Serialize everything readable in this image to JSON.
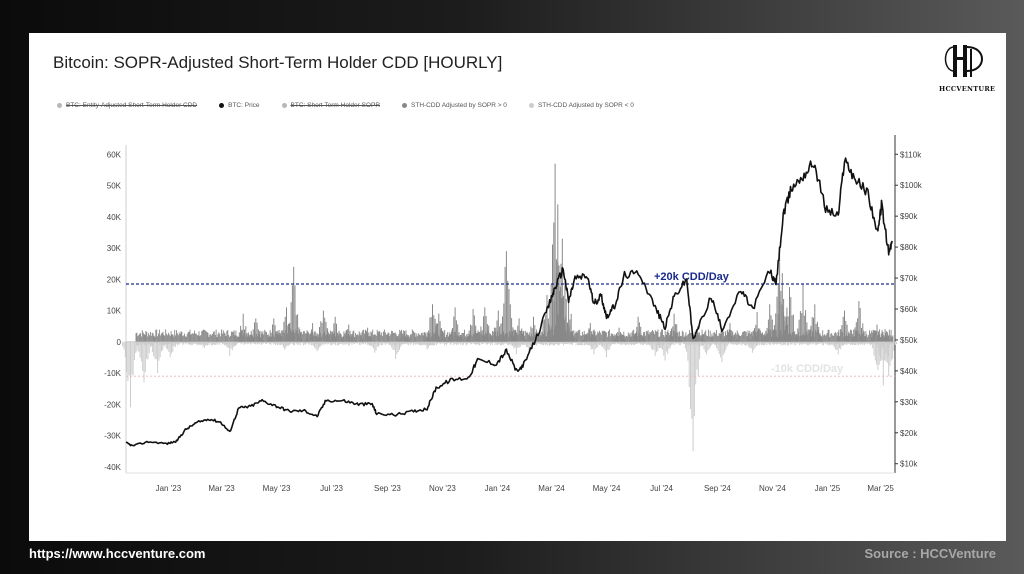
{
  "chart_data": {
    "type": "bar",
    "title": "Bitcoin: SOPR-Adjusted Short-Term Holder CDD [HOURLY]",
    "legend": [
      {
        "label": "BTC: Entity-Adjusted Short-Term Holder CDD",
        "color": "#b8b8b8",
        "hidden": true
      },
      {
        "label": "BTC: Price",
        "color": "#111111",
        "hidden": false
      },
      {
        "label": "BTC: Short Term Holder SOPR",
        "color": "#b8b8b8",
        "hidden": true
      },
      {
        "label": "STH-CDD Adjusted by SOPR > 0",
        "color": "#888888",
        "hidden": false
      },
      {
        "label": "STH-CDD Adjusted by SOPR < 0",
        "color": "#cccccc",
        "hidden": false
      }
    ],
    "legend_position": "top-left",
    "x_tick_labels": [
      "Jan '23",
      "Mar '23",
      "May '23",
      "Jul '23",
      "Sep '23",
      "Nov '23",
      "Jan '24",
      "Mar '24",
      "May '24",
      "Jul '24",
      "Sep '24",
      "Nov '24",
      "Jan '25",
      "Mar '25"
    ],
    "xlim": [
      "2022-11-15",
      "2025-03-17"
    ],
    "y_left": {
      "ticks": [
        "60K",
        "50K",
        "40K",
        "30K",
        "20K",
        "10K",
        "0",
        "-10K",
        "-20K",
        "-30K",
        "-40K"
      ],
      "ylim": [
        -42000,
        63000
      ]
    },
    "y_right": {
      "ticks": [
        "$110k",
        "$100k",
        "$90k",
        "$80k",
        "$70k",
        "$60k",
        "$50k",
        "$40k",
        "$30k",
        "$20k",
        "$10k"
      ],
      "ylim": [
        7000,
        113000
      ],
      "scale": "linear"
    },
    "grid": false,
    "annotations": [
      {
        "text": "+20k CDD/Day",
        "y": 18500,
        "color": "#1a2a8c",
        "style": "dashed"
      },
      {
        "text": "-10k CDD/Day",
        "y": -11000,
        "color": "#e8b4b4",
        "style": "dotted"
      }
    ],
    "series": [
      {
        "name": "BTC: Price",
        "axis": "right",
        "color": "#111111",
        "points": [
          [
            "2022-11-15",
            16800
          ],
          [
            "2022-11-22",
            15800
          ],
          [
            "2022-12-10",
            17100
          ],
          [
            "2022-12-31",
            16500
          ],
          [
            "2023-01-10",
            17300
          ],
          [
            "2023-01-20",
            21000
          ],
          [
            "2023-02-01",
            23200
          ],
          [
            "2023-02-15",
            24500
          ],
          [
            "2023-02-28",
            23400
          ],
          [
            "2023-03-10",
            20200
          ],
          [
            "2023-03-20",
            28000
          ],
          [
            "2023-04-01",
            28400
          ],
          [
            "2023-04-15",
            30400
          ],
          [
            "2023-05-01",
            28600
          ],
          [
            "2023-05-15",
            27000
          ],
          [
            "2023-06-01",
            27100
          ],
          [
            "2023-06-15",
            25300
          ],
          [
            "2023-06-25",
            30500
          ],
          [
            "2023-07-15",
            30300
          ],
          [
            "2023-07-31",
            29200
          ],
          [
            "2023-08-15",
            29300
          ],
          [
            "2023-08-20",
            26100
          ],
          [
            "2023-09-10",
            25800
          ],
          [
            "2023-09-30",
            27000
          ],
          [
            "2023-10-15",
            27800
          ],
          [
            "2023-10-25",
            34500
          ],
          [
            "2023-11-10",
            37000
          ],
          [
            "2023-11-30",
            37800
          ],
          [
            "2023-12-10",
            43500
          ],
          [
            "2023-12-31",
            42300
          ],
          [
            "2024-01-11",
            46500
          ],
          [
            "2024-01-23",
            39500
          ],
          [
            "2024-02-01",
            43000
          ],
          [
            "2024-02-15",
            52000
          ],
          [
            "2024-02-28",
            62000
          ],
          [
            "2024-03-05",
            67000
          ],
          [
            "2024-03-14",
            73000
          ],
          [
            "2024-03-20",
            62500
          ],
          [
            "2024-03-27",
            70000
          ],
          [
            "2024-04-10",
            70500
          ],
          [
            "2024-04-17",
            61500
          ],
          [
            "2024-04-25",
            64500
          ],
          [
            "2024-05-01",
            57500
          ],
          [
            "2024-05-10",
            61000
          ],
          [
            "2024-05-21",
            71000
          ],
          [
            "2024-06-07",
            71500
          ],
          [
            "2024-06-24",
            60500
          ],
          [
            "2024-07-05",
            54000
          ],
          [
            "2024-07-15",
            64000
          ],
          [
            "2024-07-29",
            69500
          ],
          [
            "2024-08-05",
            50000
          ],
          [
            "2024-08-25",
            64000
          ],
          [
            "2024-09-06",
            53500
          ],
          [
            "2024-09-27",
            66000
          ],
          [
            "2024-10-10",
            60000
          ],
          [
            "2024-10-29",
            72500
          ],
          [
            "2024-11-05",
            67800
          ],
          [
            "2024-11-13",
            90000
          ],
          [
            "2024-11-22",
            99000
          ],
          [
            "2024-12-05",
            103000
          ],
          [
            "2024-12-17",
            107500
          ],
          [
            "2024-12-30",
            92500
          ],
          [
            "2025-01-13",
            90000
          ],
          [
            "2025-01-20",
            108500
          ],
          [
            "2025-02-01",
            102000
          ],
          [
            "2025-02-15",
            97500
          ],
          [
            "2025-02-26",
            84000
          ],
          [
            "2025-03-02",
            94000
          ],
          [
            "2025-03-10",
            78000
          ],
          [
            "2025-03-14",
            82000
          ]
        ]
      },
      {
        "name": "STH-CDD Adjusted by SOPR > 0",
        "axis": "left",
        "color": "#888888",
        "spikes": [
          [
            "2023-03-25",
            9000
          ],
          [
            "2023-04-08",
            7500
          ],
          [
            "2023-04-28",
            7500
          ],
          [
            "2023-05-12",
            11000
          ],
          [
            "2023-05-20",
            24000
          ],
          [
            "2023-06-10",
            6000
          ],
          [
            "2023-06-22",
            10000
          ],
          [
            "2023-07-05",
            8000
          ],
          [
            "2023-07-20",
            5500
          ],
          [
            "2023-08-10",
            4500
          ],
          [
            "2023-09-20",
            3500
          ],
          [
            "2023-10-21",
            12000
          ],
          [
            "2023-10-28",
            9000
          ],
          [
            "2023-11-15",
            11000
          ],
          [
            "2023-12-05",
            10500
          ],
          [
            "2023-12-18",
            11000
          ],
          [
            "2024-01-02",
            10000
          ],
          [
            "2024-01-11",
            29000
          ],
          [
            "2024-01-25",
            7500
          ],
          [
            "2024-02-10",
            8000
          ],
          [
            "2024-02-25",
            15000
          ],
          [
            "2024-03-05",
            57000
          ],
          [
            "2024-03-08",
            44000
          ],
          [
            "2024-03-13",
            33000
          ],
          [
            "2024-03-20",
            14000
          ],
          [
            "2024-04-13",
            6000
          ],
          [
            "2024-05-15",
            4500
          ],
          [
            "2024-06-05",
            8000
          ],
          [
            "2024-07-15",
            9000
          ],
          [
            "2024-08-10",
            5000
          ],
          [
            "2024-09-15",
            6000
          ],
          [
            "2024-10-15",
            9500
          ],
          [
            "2024-10-29",
            12000
          ],
          [
            "2024-11-09",
            28500
          ],
          [
            "2024-11-12",
            22000
          ],
          [
            "2024-11-20",
            17500
          ],
          [
            "2024-12-05",
            18500
          ],
          [
            "2024-12-18",
            12000
          ],
          [
            "2025-01-20",
            10000
          ],
          [
            "2025-02-05",
            13000
          ],
          [
            "2025-02-25",
            5500
          ],
          [
            "2025-03-06",
            4000
          ]
        ]
      },
      {
        "name": "STH-CDD Adjusted by SOPR < 0",
        "axis": "left",
        "color": "#cccccc",
        "spikes": [
          [
            "2022-11-20",
            -21000
          ],
          [
            "2022-12-05",
            -13000
          ],
          [
            "2022-12-20",
            -10000
          ],
          [
            "2023-01-03",
            -5000
          ],
          [
            "2023-02-10",
            -2000
          ],
          [
            "2023-03-10",
            -4500
          ],
          [
            "2023-05-10",
            -2500
          ],
          [
            "2023-06-15",
            -3000
          ],
          [
            "2023-08-18",
            -3500
          ],
          [
            "2023-09-10",
            -5500
          ],
          [
            "2023-10-15",
            -2500
          ],
          [
            "2024-01-22",
            -4000
          ],
          [
            "2024-02-05",
            -3500
          ],
          [
            "2024-04-17",
            -4000
          ],
          [
            "2024-05-01",
            -5000
          ],
          [
            "2024-06-24",
            -4500
          ],
          [
            "2024-07-05",
            -6000
          ],
          [
            "2024-08-05",
            -35000
          ],
          [
            "2024-08-20",
            -4000
          ],
          [
            "2024-09-06",
            -6500
          ],
          [
            "2024-10-10",
            -3500
          ],
          [
            "2025-01-13",
            -4000
          ],
          [
            "2025-02-26",
            -9000
          ],
          [
            "2025-03-04",
            -14000
          ],
          [
            "2025-03-10",
            -11000
          ]
        ]
      }
    ]
  },
  "logo": {
    "text": "HCCVENTURE"
  },
  "footer": {
    "website": "https://www.hccventure.com",
    "source": "Source : HCCVenture"
  }
}
